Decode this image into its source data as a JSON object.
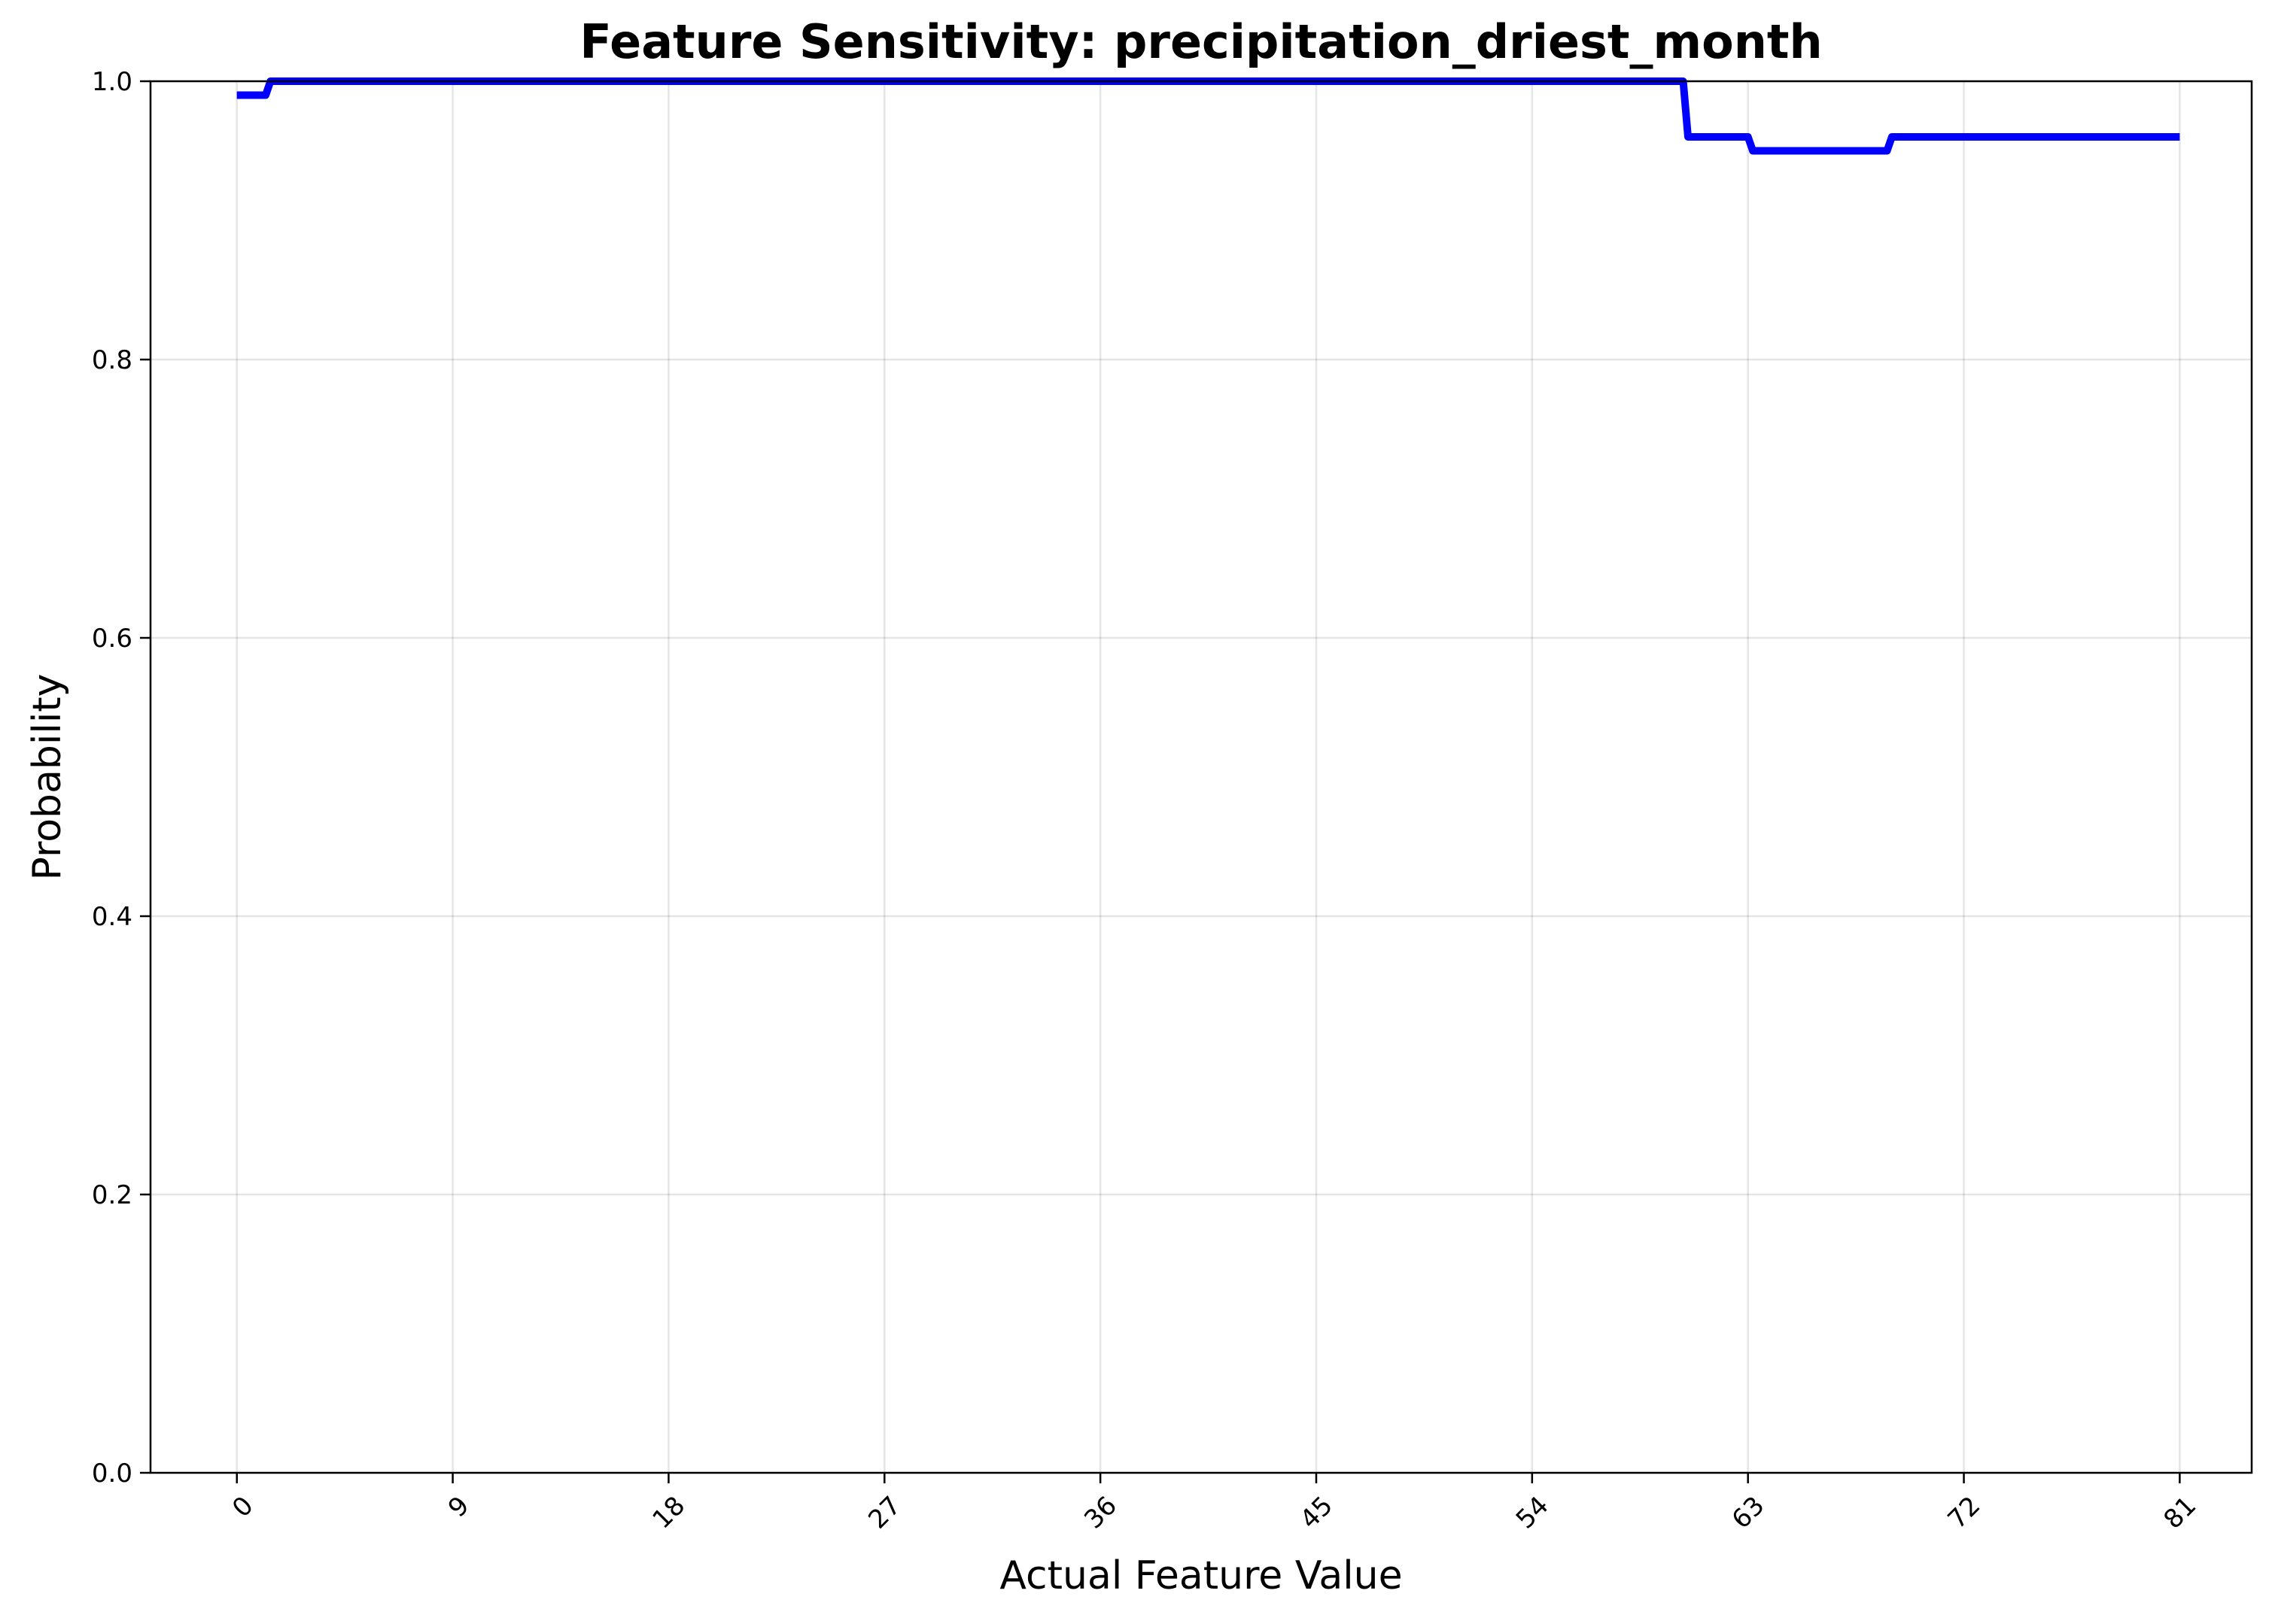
{
  "chart_data": {
    "type": "line",
    "title": "Feature Sensitivity: precipitation_driest_month",
    "xlabel": "Actual Feature Value",
    "ylabel": "Probability",
    "xlim": [
      -3.6,
      84
    ],
    "ylim": [
      0,
      1.0
    ],
    "x_ticks": [
      0,
      9,
      18,
      27,
      36,
      45,
      54,
      63,
      72,
      81
    ],
    "x_tick_labels": [
      "0",
      "9",
      "18",
      "27",
      "36",
      "45",
      "54",
      "63",
      "72",
      "81"
    ],
    "y_ticks": [
      0.0,
      0.2,
      0.4,
      0.6,
      0.8,
      1.0
    ],
    "y_tick_labels": [
      "0.0",
      "0.2",
      "0.4",
      "0.6",
      "0.8",
      "1.0"
    ],
    "grid": true,
    "legend": false,
    "series": [
      {
        "color": "#0000ff",
        "x": [
          0,
          1.2,
          1.4,
          60.3,
          60.5,
          63.0,
          63.2,
          68.8,
          69.0,
          81
        ],
        "y": [
          0.99,
          0.99,
          1.0,
          1.0,
          0.96,
          0.96,
          0.95,
          0.95,
          0.96,
          0.96
        ]
      }
    ]
  }
}
